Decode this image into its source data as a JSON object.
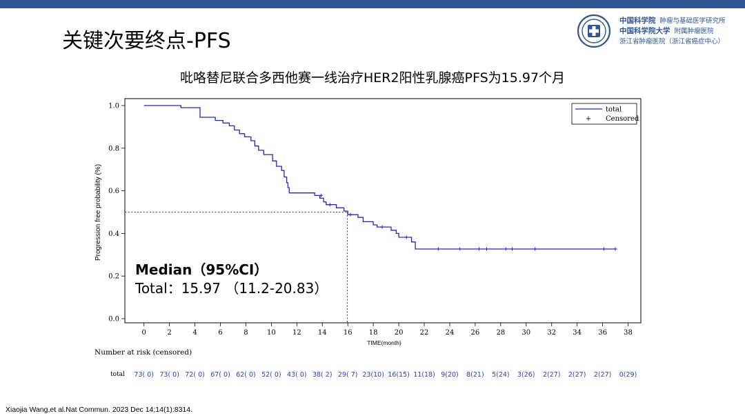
{
  "slide": {
    "title": "关键次要终点-PFS",
    "subtitle": "吡咯替尼联合多西他赛一线治疗HER2阳性乳腺癌PFS为15.97个月",
    "citation": "Xiaojia Wang,et al.Nat Commun. 2023 Dec 14;14(1):8314."
  },
  "logo": {
    "line1_cn": "中国科学院",
    "line1": "肿瘤与基础医学研究所",
    "line2_cn": "中国科学院大学",
    "line2": "附属肿瘤医院",
    "line3": "浙江省肿瘤医院（浙江省癌症中心）"
  },
  "median_box": {
    "heading": "Median（95%CI）",
    "value": "Total：15.97 （11.2-20.83）"
  },
  "colors": {
    "accent_bar": "#2f5597",
    "curve": "#2020e0"
  },
  "chart_data": {
    "type": "line",
    "subtype": "kaplan-meier",
    "ylabel": "Progression free probability (%)",
    "xlabel": "TIME(month)",
    "xlim": [
      -1.5,
      39
    ],
    "ylim": [
      0,
      1.0
    ],
    "xticks": [
      0,
      2,
      4,
      6,
      8,
      10,
      12,
      14,
      16,
      18,
      20,
      22,
      24,
      26,
      28,
      30,
      32,
      34,
      36,
      38
    ],
    "yticks": [
      0.0,
      0.2,
      0.4,
      0.6,
      0.8,
      1.0
    ],
    "ytick_labels": [
      "0.0",
      "0.2",
      "0.4",
      "0.6",
      "0.8",
      "1.0"
    ],
    "legend": {
      "position": "top-right",
      "entries": [
        "total",
        "Censored"
      ],
      "censored_symbol": "+"
    },
    "median_reference": {
      "y": 0.5,
      "x": 15.97
    },
    "series": [
      {
        "name": "total",
        "steps": [
          [
            0,
            1.0
          ],
          [
            2.9,
            0.99
          ],
          [
            4.4,
            0.945
          ],
          [
            5.6,
            0.93
          ],
          [
            6.2,
            0.918
          ],
          [
            6.7,
            0.905
          ],
          [
            7.1,
            0.885
          ],
          [
            7.5,
            0.868
          ],
          [
            7.9,
            0.853
          ],
          [
            8.4,
            0.835
          ],
          [
            8.7,
            0.81
          ],
          [
            9.0,
            0.79
          ],
          [
            9.4,
            0.77
          ],
          [
            10.1,
            0.74
          ],
          [
            10.4,
            0.715
          ],
          [
            10.8,
            0.695
          ],
          [
            11.0,
            0.665
          ],
          [
            11.2,
            0.638
          ],
          [
            11.3,
            0.615
          ],
          [
            11.4,
            0.59
          ],
          [
            13.4,
            0.578
          ],
          [
            13.8,
            0.565
          ],
          [
            14.1,
            0.548
          ],
          [
            14.3,
            0.535
          ],
          [
            15.1,
            0.52
          ],
          [
            15.7,
            0.505
          ],
          [
            16.0,
            0.488
          ],
          [
            16.8,
            0.475
          ],
          [
            17.2,
            0.455
          ],
          [
            18.0,
            0.44
          ],
          [
            18.3,
            0.43
          ],
          [
            19.4,
            0.415
          ],
          [
            19.8,
            0.4
          ],
          [
            20.0,
            0.382
          ],
          [
            21.0,
            0.36
          ],
          [
            21.3,
            0.327
          ],
          [
            37.0,
            0.327
          ]
        ],
        "censored": [
          [
            13.9,
            0.578
          ],
          [
            14.6,
            0.535
          ],
          [
            16.2,
            0.488
          ],
          [
            18.7,
            0.43
          ],
          [
            20.6,
            0.382
          ],
          [
            23.1,
            0.327
          ],
          [
            24.8,
            0.327
          ],
          [
            26.3,
            0.327
          ],
          [
            26.9,
            0.327
          ],
          [
            28.4,
            0.327
          ],
          [
            28.9,
            0.327
          ],
          [
            30.7,
            0.327
          ],
          [
            36.1,
            0.327
          ],
          [
            37.0,
            0.327
          ]
        ]
      }
    ],
    "risk_table": {
      "title": "Number at risk (censored)",
      "row_label": "total",
      "times": [
        0,
        2,
        4,
        6,
        8,
        10,
        12,
        14,
        16,
        18,
        20,
        22,
        24,
        26,
        28,
        30,
        32,
        34,
        36,
        38
      ],
      "values": [
        "73( 0)",
        "73( 0)",
        "72( 0)",
        "67( 0)",
        "62( 0)",
        "52( 0)",
        "43( 0)",
        "38( 2)",
        "29( 7)",
        "23(10)",
        "16(15)",
        "11(18)",
        "9(20)",
        "8(21)",
        "5(24)",
        "3(26)",
        "2(27)",
        "2(27)",
        "2(27)",
        "0(29)"
      ]
    }
  }
}
